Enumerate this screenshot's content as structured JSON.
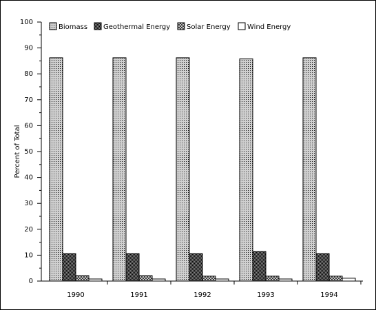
{
  "chart_data": {
    "type": "bar",
    "y_label": "Percent of Total",
    "categories": [
      "1990",
      "1991",
      "1992",
      "1993",
      "1994"
    ],
    "series": [
      {
        "name": "Biomass",
        "color": "#d0d0d0",
        "values": [
          86.2,
          86.2,
          86.2,
          85.8,
          86.2
        ]
      },
      {
        "name": "Geothermal Energy",
        "color": "#909090",
        "values": [
          10.6,
          10.6,
          10.6,
          11.4,
          10.6
        ]
      },
      {
        "name": "Solar Energy",
        "color": "#e0e0e0",
        "values": [
          2.1,
          2.1,
          1.9,
          1.9,
          1.9
        ]
      },
      {
        "name": "Wind Energy",
        "color": "#ffffff",
        "values": [
          0.8,
          0.8,
          0.8,
          0.8,
          1.1
        ]
      }
    ],
    "ylim": [
      0,
      100
    ],
    "yticks": [
      0,
      10,
      20,
      30,
      40,
      50,
      60,
      70,
      80,
      90,
      100
    ],
    "legend": "top-left"
  }
}
